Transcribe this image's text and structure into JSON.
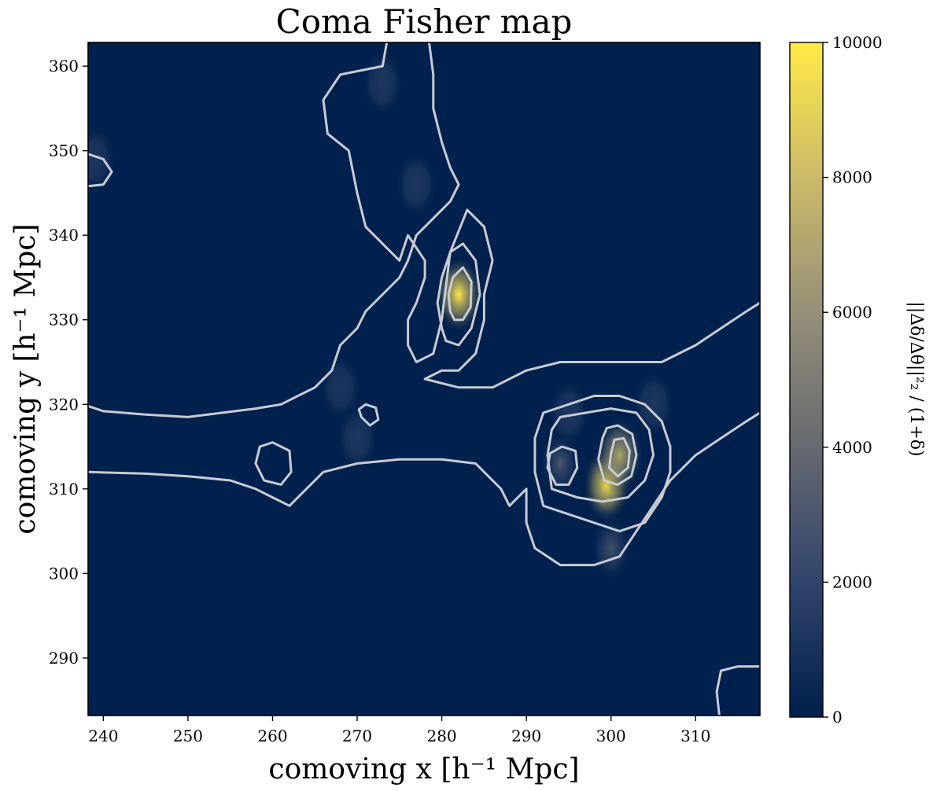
{
  "chart_data": {
    "type": "heatmap",
    "title": "Coma Fisher map",
    "xlabel": "comoving x [h⁻¹  Mpc]",
    "ylabel": "comoving y [h⁻¹  Mpc]",
    "xlim": [
      238.2,
      317.6
    ],
    "ylim": [
      283.2,
      362.8
    ],
    "xticks": [
      240,
      250,
      260,
      270,
      280,
      290,
      300,
      310
    ],
    "yticks": [
      290,
      300,
      310,
      320,
      330,
      340,
      350,
      360
    ],
    "colorbar": {
      "label": "||Δδ/Δθ||²₂ / (1+δ)",
      "range": [
        0,
        10000
      ],
      "ticks": [
        0,
        2000,
        4000,
        6000,
        8000,
        10000
      ],
      "colormap": "cividis",
      "colors": [
        "#00204d",
        "#31446b",
        "#666970",
        "#958f78",
        "#cbba69",
        "#ffea46"
      ]
    },
    "contour_color": "#c8cbd2",
    "hotspots": [
      {
        "x": 282.0,
        "y": 333.0,
        "value": 10000
      },
      {
        "x": 299.5,
        "y": 310.5,
        "value": 9000
      },
      {
        "x": 301.0,
        "y": 314.0,
        "value": 7000
      },
      {
        "x": 294.0,
        "y": 313.0,
        "value": 4500
      },
      {
        "x": 277.0,
        "y": 346.0,
        "value": 2500
      },
      {
        "x": 273.0,
        "y": 358.0,
        "value": 2200
      },
      {
        "x": 270.0,
        "y": 316.0,
        "value": 2500
      },
      {
        "x": 295.0,
        "y": 319.0,
        "value": 2200
      },
      {
        "x": 305.0,
        "y": 320.0,
        "value": 1800
      },
      {
        "x": 239.0,
        "y": 349.0,
        "value": 1600
      },
      {
        "x": 268.0,
        "y": 322.0,
        "value": 1500
      },
      {
        "x": 300.0,
        "y": 303.0,
        "value": 3000
      }
    ],
    "contours": [
      [
        [
          273.5,
          362.8
        ],
        [
          273,
          360
        ],
        [
          268,
          359
        ],
        [
          266,
          356
        ],
        [
          266.5,
          352
        ],
        [
          269,
          350
        ],
        [
          270,
          345
        ],
        [
          271,
          341
        ],
        [
          273,
          339
        ],
        [
          275,
          337
        ],
        [
          276,
          340
        ],
        [
          278,
          337
        ],
        [
          278,
          335
        ],
        [
          277,
          332
        ],
        [
          276,
          330
        ],
        [
          276,
          327
        ],
        [
          277,
          325
        ],
        [
          279,
          326
        ],
        [
          280,
          330
        ],
        [
          281,
          338
        ],
        [
          283,
          343
        ],
        [
          285,
          341
        ],
        [
          286,
          337
        ],
        [
          285,
          333
        ],
        [
          285,
          330
        ],
        [
          284,
          326
        ],
        [
          282,
          324
        ],
        [
          280,
          324
        ],
        [
          278,
          323
        ],
        [
          282,
          322
        ],
        [
          286,
          322
        ],
        [
          290,
          324
        ],
        [
          294,
          325
        ],
        [
          300,
          325
        ],
        [
          306,
          325
        ],
        [
          310,
          327
        ],
        [
          313,
          329
        ],
        [
          316,
          331
        ],
        [
          317.6,
          332
        ]
      ],
      [
        [
          278.5,
          362.8
        ],
        [
          279,
          359
        ],
        [
          279,
          355
        ],
        [
          280,
          351
        ],
        [
          281,
          348
        ],
        [
          282,
          346
        ],
        [
          281,
          344
        ],
        [
          279,
          342
        ],
        [
          277,
          340
        ],
        [
          276,
          337
        ],
        [
          275,
          335
        ],
        [
          273,
          333
        ],
        [
          271,
          331
        ],
        [
          270,
          329
        ],
        [
          268,
          327
        ],
        [
          267,
          324
        ],
        [
          265,
          322
        ],
        [
          263,
          321
        ],
        [
          261,
          320
        ],
        [
          258,
          319.5
        ],
        [
          254,
          319
        ],
        [
          250,
          318.5
        ],
        [
          245,
          318.8
        ],
        [
          240,
          319.2
        ],
        [
          238.2,
          319.8
        ]
      ],
      [
        [
          238.2,
          312
        ],
        [
          245,
          311.8
        ],
        [
          250,
          311.5
        ],
        [
          255,
          311
        ],
        [
          258,
          310
        ],
        [
          260,
          309
        ],
        [
          262,
          308
        ],
        [
          264,
          310
        ],
        [
          266,
          312
        ],
        [
          270,
          313
        ],
        [
          275,
          313.5
        ],
        [
          280,
          313.5
        ],
        [
          284,
          313
        ],
        [
          287,
          310
        ],
        [
          288,
          308
        ],
        [
          290,
          310
        ],
        [
          290,
          306
        ],
        [
          291,
          303
        ],
        [
          294,
          301
        ],
        [
          298,
          301
        ],
        [
          301,
          302
        ],
        [
          303,
          305
        ],
        [
          305,
          308
        ],
        [
          307,
          311
        ],
        [
          310,
          314
        ],
        [
          313,
          316
        ],
        [
          316,
          318
        ],
        [
          317.6,
          319
        ]
      ],
      [
        [
          292,
          319
        ],
        [
          291,
          316
        ],
        [
          291,
          312
        ],
        [
          292,
          308
        ],
        [
          295,
          307
        ],
        [
          298,
          306
        ],
        [
          301,
          305
        ],
        [
          304,
          306
        ],
        [
          306,
          309
        ],
        [
          307,
          312
        ],
        [
          307,
          315
        ],
        [
          306,
          318
        ],
        [
          304,
          320
        ],
        [
          301,
          321
        ],
        [
          298,
          321
        ],
        [
          295,
          320
        ],
        [
          292,
          319
        ]
      ],
      [
        [
          293,
          317
        ],
        [
          292.5,
          314
        ],
        [
          293,
          310
        ],
        [
          296,
          309
        ],
        [
          299,
          308.5
        ],
        [
          302,
          309
        ],
        [
          304,
          311
        ],
        [
          305,
          314
        ],
        [
          304.5,
          317
        ],
        [
          303,
          319
        ],
        [
          300,
          319.5
        ],
        [
          297,
          319
        ],
        [
          294,
          318.5
        ],
        [
          293,
          317
        ]
      ],
      [
        [
          292.5,
          312.5
        ],
        [
          293.5,
          310.5
        ],
        [
          295,
          310.5
        ],
        [
          296,
          312.5
        ],
        [
          295.8,
          314.5
        ],
        [
          294.2,
          315
        ],
        [
          292.8,
          314.2
        ],
        [
          292.5,
          312.5
        ]
      ],
      [
        [
          299,
          316
        ],
        [
          298.5,
          313.5
        ],
        [
          299.2,
          311
        ],
        [
          300.8,
          310.5
        ],
        [
          302.4,
          311.5
        ],
        [
          303,
          314
        ],
        [
          302.5,
          316.5
        ],
        [
          300.8,
          317.5
        ],
        [
          299.5,
          317.2
        ],
        [
          299,
          316
        ]
      ],
      [
        [
          300,
          314.2
        ],
        [
          299.8,
          312.5
        ],
        [
          300.8,
          311.5
        ],
        [
          302,
          312.5
        ],
        [
          302.2,
          314.5
        ],
        [
          301.5,
          316
        ],
        [
          300.4,
          315.8
        ],
        [
          300,
          314.2
        ]
      ],
      [
        [
          280,
          329
        ],
        [
          279.5,
          332
        ],
        [
          280,
          335
        ],
        [
          281,
          338
        ],
        [
          282.5,
          339
        ],
        [
          284,
          337
        ],
        [
          284.5,
          333
        ],
        [
          283.5,
          329
        ],
        [
          282,
          327
        ],
        [
          280.5,
          327.5
        ],
        [
          280,
          329
        ]
      ],
      [
        [
          281,
          331
        ],
        [
          280.8,
          333
        ],
        [
          281.3,
          335
        ],
        [
          282.5,
          336.2
        ],
        [
          283.5,
          334.5
        ],
        [
          283.4,
          331.5
        ],
        [
          282.5,
          330
        ],
        [
          281.5,
          330
        ],
        [
          281,
          331
        ]
      ],
      [
        [
          270.5,
          318.5
        ],
        [
          271.5,
          317.5
        ],
        [
          272.5,
          318.2
        ],
        [
          272.2,
          319.6
        ],
        [
          271,
          320
        ],
        [
          270.2,
          319.4
        ],
        [
          270.5,
          318.5
        ]
      ],
      [
        [
          258,
          313
        ],
        [
          259,
          311
        ],
        [
          261,
          310.5
        ],
        [
          262.2,
          312
        ],
        [
          262,
          314.5
        ],
        [
          260,
          315.5
        ],
        [
          258.5,
          315
        ],
        [
          258,
          313
        ]
      ],
      [
        [
          238.2,
          349.6
        ],
        [
          240,
          349
        ],
        [
          241,
          347.5
        ],
        [
          240,
          346
        ],
        [
          238.2,
          345.8
        ]
      ],
      [
        [
          317.6,
          289
        ],
        [
          315,
          289
        ],
        [
          313,
          288.5
        ],
        [
          312.5,
          286
        ],
        [
          312.8,
          283.2
        ]
      ]
    ]
  }
}
